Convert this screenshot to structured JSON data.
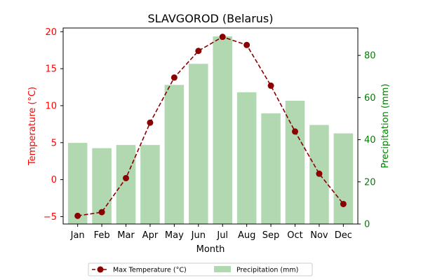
{
  "chart_data": {
    "type": "bar+line",
    "title": "SLAVGOROD (Belarus)",
    "xlabel": "Month",
    "ylabel_left": "Temperature (°C)",
    "ylabel_right": "Precipitation (mm)",
    "categories": [
      "Jan",
      "Feb",
      "Mar",
      "Apr",
      "May",
      "Jun",
      "Jul",
      "Aug",
      "Sep",
      "Oct",
      "Nov",
      "Dec"
    ],
    "series": [
      {
        "name": "Max Temperature (°C)",
        "kind": "line",
        "axis": "left",
        "values": [
          -4.9,
          -4.4,
          0.2,
          7.7,
          13.8,
          17.4,
          19.3,
          18.2,
          12.7,
          6.5,
          0.8,
          -3.3
        ]
      },
      {
        "name": "Precipitation (mm)",
        "kind": "bar",
        "axis": "right",
        "values": [
          38.5,
          36,
          37.5,
          37.5,
          66,
          76,
          89,
          62.5,
          52.5,
          58.5,
          47,
          43
        ]
      }
    ],
    "ylim_left": [
      -6,
      20.5
    ],
    "yticks_left": [
      -5,
      0,
      5,
      10,
      15,
      20
    ],
    "ylim_right": [
      0,
      93
    ],
    "yticks_right": [
      0,
      20,
      40,
      60,
      80
    ],
    "grid": false,
    "legend_position": "bottom-center",
    "colors": {
      "line": "#8b0000",
      "bar": "#b2d8b2",
      "left_axis": "#ff0000",
      "right_axis": "#008000",
      "text": "#000000"
    }
  }
}
